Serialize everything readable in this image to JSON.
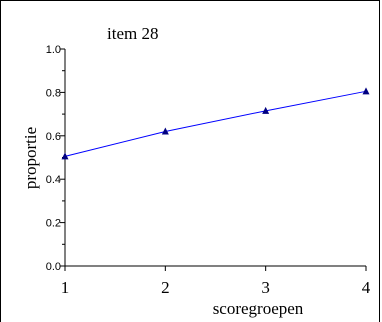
{
  "chart_data": {
    "type": "line",
    "title": "item 28",
    "xlabel": "scoregroepen",
    "ylabel": "proportie",
    "x": [
      1,
      2,
      3,
      4
    ],
    "series": [
      {
        "values": [
          0.505,
          0.62,
          0.715,
          0.805
        ]
      }
    ],
    "xlim": [
      1,
      4
    ],
    "ylim": [
      0.0,
      1.0
    ],
    "xticks": [
      "1",
      "2",
      "3",
      "4"
    ],
    "yticks": [
      "0.0",
      "0.2",
      "0.4",
      "0.6",
      "0.8",
      "1.0"
    ],
    "grid": false,
    "colors": {
      "line": "#0000ff",
      "marker": "#000080"
    }
  }
}
